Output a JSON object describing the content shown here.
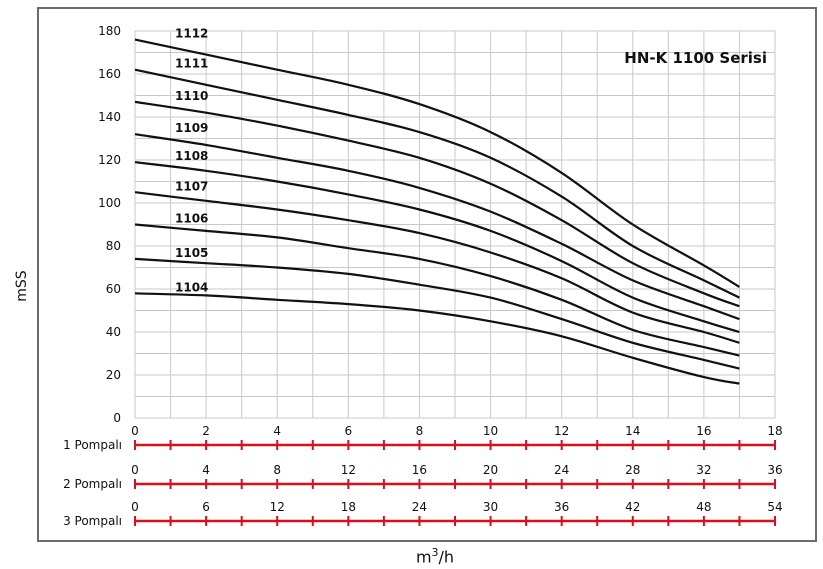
{
  "chart_data": {
    "type": "line",
    "title": "HN-K 1100 Serisi",
    "ylabel": "mSS",
    "xlabel_base": "m",
    "xlabel_sup": "3",
    "xlabel_tail": "/h",
    "xlim": [
      0,
      18
    ],
    "ylim": [
      0,
      180
    ],
    "yticks": [
      0,
      20,
      40,
      60,
      80,
      100,
      120,
      140,
      160,
      180
    ],
    "xticks": [
      0,
      2,
      4,
      6,
      8,
      10,
      12,
      14,
      16,
      18
    ],
    "grid": true,
    "x": [
      0,
      2,
      4,
      6,
      8,
      10,
      12,
      14,
      16,
      17
    ],
    "series": [
      {
        "name": "1112",
        "values": [
          176,
          169,
          162,
          155,
          146,
          133,
          114,
          90,
          71,
          61
        ]
      },
      {
        "name": "1111",
        "values": [
          162,
          155,
          148,
          141,
          133,
          121,
          103,
          80,
          64,
          56
        ]
      },
      {
        "name": "1110",
        "values": [
          147,
          142,
          136,
          129,
          121,
          109,
          92,
          72,
          58,
          52
        ]
      },
      {
        "name": "1109",
        "values": [
          132,
          127,
          121,
          115,
          107,
          96,
          81,
          64,
          52,
          46
        ]
      },
      {
        "name": "1108",
        "values": [
          119,
          115,
          110,
          104,
          97,
          87,
          73,
          56,
          45,
          40
        ]
      },
      {
        "name": "1107",
        "values": [
          105,
          101,
          97,
          92,
          86,
          77,
          65,
          49,
          40,
          35
        ]
      },
      {
        "name": "1106",
        "values": [
          90,
          87,
          84,
          79,
          74,
          66,
          55,
          41,
          33,
          29
        ]
      },
      {
        "name": "1105",
        "values": [
          74,
          72,
          70,
          67,
          62,
          56,
          46,
          35,
          27,
          23
        ]
      },
      {
        "name": "1104",
        "values": [
          58,
          57,
          55,
          53,
          50,
          45,
          38,
          28,
          19,
          16
        ]
      }
    ],
    "pump_scales": [
      {
        "label": "1 Pompalı",
        "ticks": [
          "0",
          "2",
          "4",
          "6",
          "8",
          "10",
          "12",
          "14",
          "16",
          "18"
        ],
        "tick_labels_shown": false
      },
      {
        "label": "2 Pompalı",
        "ticks": [
          "0",
          "4",
          "8",
          "12",
          "16",
          "20",
          "24",
          "28",
          "32",
          "36"
        ],
        "tick_labels_shown": true
      },
      {
        "label": "3 Pompalı",
        "ticks": [
          "0",
          "6",
          "12",
          "18",
          "24",
          "30",
          "36",
          "42",
          "48",
          "54"
        ],
        "tick_labels_shown": true
      }
    ],
    "colors": {
      "curve": "#111111",
      "grid": "#c8c8c8",
      "pump_scale": "#d6101e",
      "frame": "#6b6b6b"
    }
  }
}
